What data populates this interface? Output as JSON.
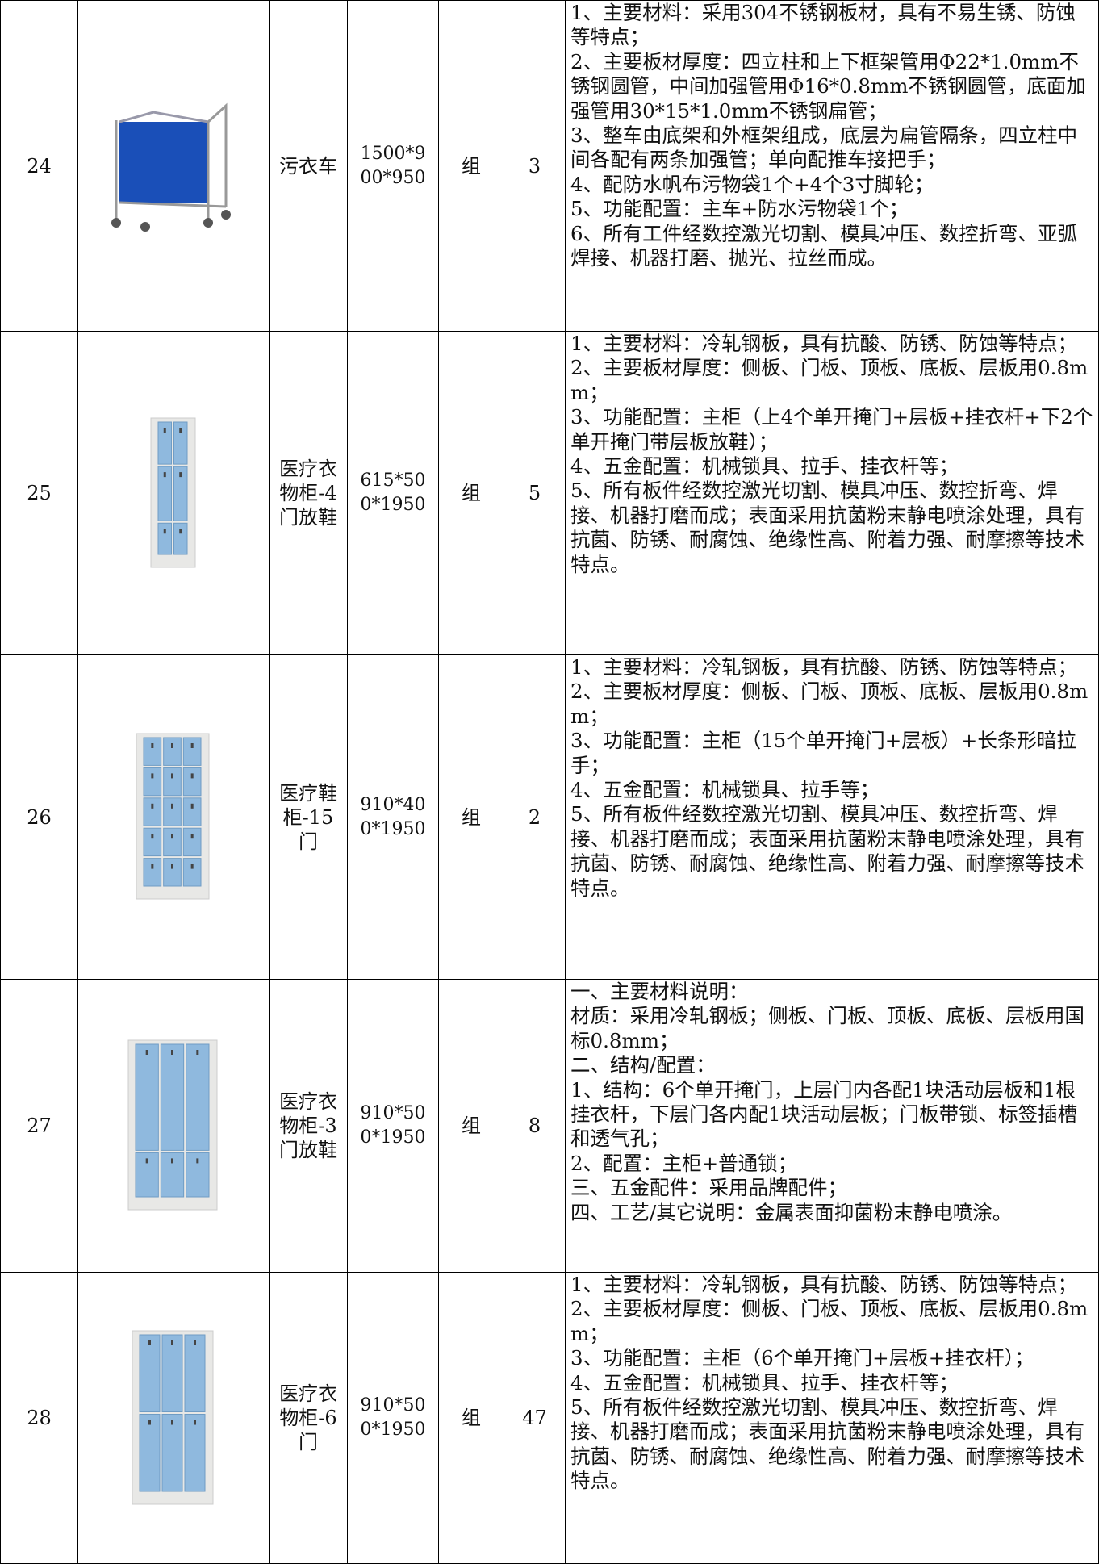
{
  "table": {
    "rows": [
      {
        "index": "24",
        "name": "污衣车",
        "size": "1500*900*950",
        "unit": "组",
        "qty": "3",
        "desc": [
          "1、主要材料：采用304不锈钢板材，具有不易生锈、防蚀等特点；",
          "2、主要板材厚度：四立柱和上下框架管用Φ22*1.0mm不锈钢圆管，中间加强管用Φ16*0.8mm不锈钢圆管，底面加强管用30*15*1.0mm不锈钢扁管；",
          "3、整车由底架和外框架组成，底层为扁管隔条，四立柱中间各配有两条加强管；单向配推车接把手；",
          "4、配防水帆布污物袋1个+4个3寸脚轮；",
          "5、功能配置：主车+防水污物袋1个；",
          "6、所有工件经数控激光切割、模具冲压、数控折弯、亚弧焊接、机器打磨、抛光、拉丝而成。"
        ]
      },
      {
        "index": "25",
        "name": "医疗衣物柜-4门放鞋",
        "size": "615*500*1950",
        "unit": "组",
        "qty": "5",
        "desc": [
          "1、主要材料：冷轧钢板，具有抗酸、防锈、防蚀等特点；",
          "2、主要板材厚度：侧板、门板、顶板、底板、层板用0.8mm；",
          "3、功能配置：主柜（上4个单开掩门+层板+挂衣杆+下2个单开掩门带层板放鞋）；",
          "4、五金配置：机械锁具、拉手、挂衣杆等；",
          "5、所有板件经数控激光切割、模具冲压、数控折弯、焊接、机器打磨而成；表面采用抗菌粉末静电喷涂处理，具有抗菌、防锈、耐腐蚀、绝缘性高、附着力强、耐摩擦等技术特点。"
        ]
      },
      {
        "index": "26",
        "name": "医疗鞋柜-15门",
        "size": "910*400*1950",
        "unit": "组",
        "qty": "2",
        "desc": [
          "1、主要材料：冷轧钢板，具有抗酸、防锈、防蚀等特点；",
          "2、主要板材厚度：侧板、门板、顶板、底板、层板用0.8mm；",
          "3、功能配置：主柜（15个单开掩门+层板）+长条形暗拉手；",
          "4、五金配置：机械锁具、拉手等；",
          "5、所有板件经数控激光切割、模具冲压、数控折弯、焊接、机器打磨而成；表面采用抗菌粉末静电喷涂处理，具有抗菌、防锈、耐腐蚀、绝缘性高、附着力强、耐摩擦等技术特点。"
        ]
      },
      {
        "index": "27",
        "name": "医疗衣物柜-3门放鞋",
        "size": "910*500*1950",
        "unit": "组",
        "qty": "8",
        "desc": [
          "一、主要材料说明：",
          "材质：采用冷轧钢板；侧板、门板、顶板、底板、层板用国标0.8mm；",
          "二、结构/配置：",
          "1、结构：6个单开掩门，上层门内各配1块活动层板和1根挂衣杆，下层门各内配1块活动层板；门板带锁、标签插槽和透气孔；",
          "2、配置：主柜+普通锁；",
          "三、五金配件：采用品牌配件；",
          "四、工艺/其它说明：金属表面抑菌粉末静电喷涂。"
        ]
      },
      {
        "index": "28",
        "name": "医疗衣物柜-6门",
        "size": "910*500*1950",
        "unit": "组",
        "qty": "47",
        "desc": [
          "1、主要材料：冷轧钢板，具有抗酸、防锈、防蚀等特点；",
          "2、主要板材厚度：侧板、门板、顶板、底板、层板用0.8mm；",
          "3、功能配置：主柜（6个单开掩门+层板+挂衣杆）；",
          "4、五金配置：机械锁具、拉手、挂衣杆等；",
          "5、所有板件经数控激光切割、模具冲压、数控折弯、焊接、机器打磨而成；表面采用抗菌粉末静电喷涂处理，具有抗菌、防锈、耐腐蚀、绝缘性高、附着力强、耐摩擦等技术特点。"
        ]
      }
    ]
  }
}
